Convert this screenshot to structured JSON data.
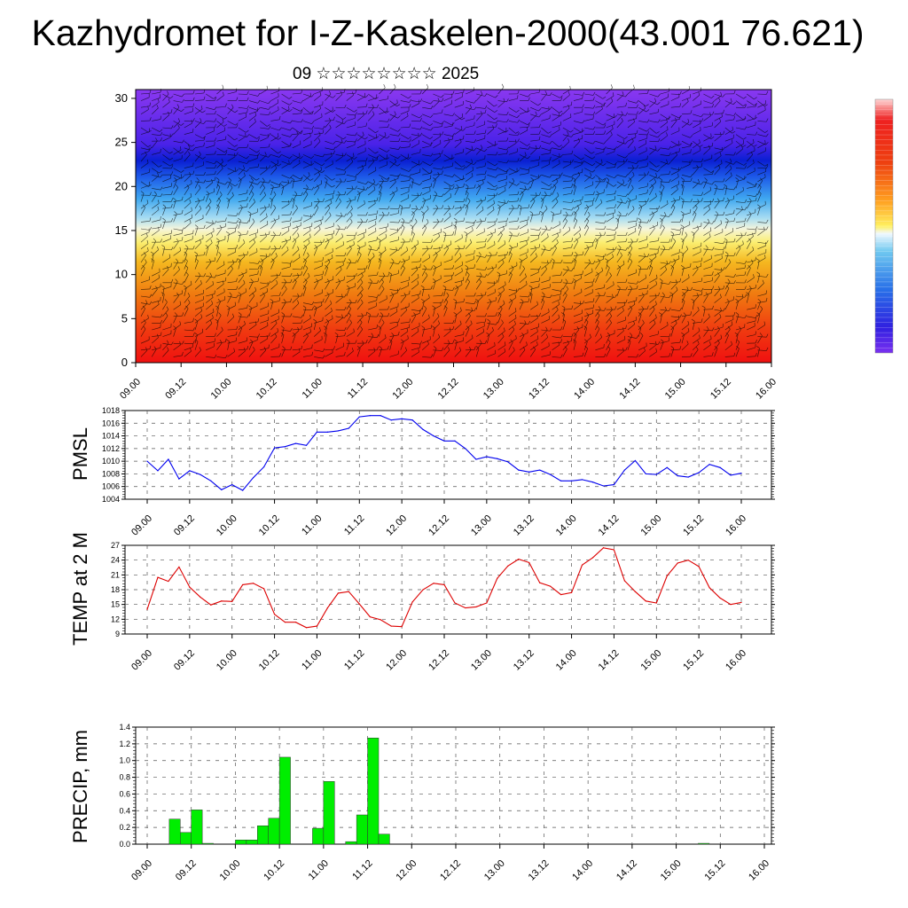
{
  "title": "Kazhydromet for I-Z-Kaskelen-2000(43.001 76.621)",
  "subtitle": "09 ☆☆☆☆☆☆☆☆ 2025",
  "x_tick_labels": [
    "09.00",
    "09.12",
    "10.00",
    "10.12",
    "11.00",
    "11.12",
    "12.00",
    "12.12",
    "13.00",
    "13.12",
    "14.00",
    "14.12",
    "15.00",
    "15.12",
    "16.00"
  ],
  "colors": {
    "pmsl_line": "#0000ee",
    "temp_line": "#dd0000",
    "precip_bar": "#00ee00"
  },
  "chart_data": [
    {
      "type": "heatmap",
      "title": "",
      "xlabel": "",
      "ylabel": "",
      "ylim": [
        0,
        31
      ],
      "y_ticks": [
        "0",
        "5",
        "10",
        "15",
        "20",
        "25",
        "30"
      ],
      "x_categories": [
        "09.00",
        "09.12",
        "10.00",
        "10.12",
        "11.00",
        "11.12",
        "12.00",
        "12.12",
        "13.00",
        "13.12",
        "14.00",
        "14.12",
        "15.00",
        "15.12",
        "16.00"
      ],
      "colormap": "warm-bottom-to-cool-top with wind barbs overlay",
      "legend": "colorbar right, unlabeled"
    },
    {
      "type": "line",
      "ylabel": "PMSL",
      "ylim": [
        1004,
        1018
      ],
      "y_ticks": [
        "1004",
        "1006",
        "1008",
        "1010",
        "1012",
        "1014",
        "1016",
        "1018"
      ],
      "grid": true,
      "series": [
        {
          "values": [
            1010.0,
            1008.5,
            1010.3,
            1007.2,
            1008.5,
            1007.9,
            1006.9,
            1005.5,
            1006.3,
            1005.4,
            1007.4,
            1009.1,
            1012.1,
            1012.3,
            1012.8,
            1012.5,
            1014.6,
            1014.6,
            1014.8,
            1015.2,
            1017.0,
            1017.2,
            1017.2,
            1016.5,
            1016.7,
            1016.5,
            1015.0,
            1014.0,
            1013.2,
            1013.2,
            1012.0,
            1010.3,
            1010.7,
            1010.4,
            1009.9,
            1008.6,
            1008.3,
            1008.6,
            1007.9,
            1006.9,
            1006.9,
            1007.1,
            1006.7,
            1006.1,
            1006.3,
            1008.6,
            1010.1,
            1008.0,
            1007.9,
            1009.0,
            1007.7,
            1007.5,
            1008.2,
            1009.5,
            1009.0,
            1007.8,
            1008.1
          ]
        }
      ]
    },
    {
      "type": "line",
      "ylabel": "TEMP at 2 M",
      "ylim": [
        9,
        27
      ],
      "y_ticks": [
        "9",
        "12",
        "15",
        "18",
        "21",
        "24",
        "27"
      ],
      "grid": true,
      "series": [
        {
          "values": [
            14.0,
            20.5,
            19.7,
            22.6,
            18.5,
            16.5,
            14.9,
            15.7,
            15.6,
            19.0,
            19.3,
            18.2,
            13.0,
            11.4,
            11.4,
            10.3,
            10.6,
            14.3,
            17.3,
            17.6,
            15.1,
            12.5,
            11.9,
            10.6,
            10.5,
            15.5,
            18.0,
            19.3,
            19.0,
            15.3,
            14.3,
            14.5,
            15.3,
            20.3,
            22.8,
            24.2,
            23.5,
            19.4,
            18.7,
            17.0,
            17.4,
            23.0,
            24.5,
            26.5,
            26.1,
            19.8,
            17.6,
            15.7,
            15.3,
            20.8,
            23.4,
            24.0,
            22.7,
            18.4,
            16.3,
            15.0,
            15.4
          ]
        }
      ]
    },
    {
      "type": "bar",
      "ylabel": "PRECIP, mm",
      "ylim": [
        0,
        1.4
      ],
      "y_ticks": [
        "0.0",
        "0.2",
        "0.4",
        "0.6",
        "0.8",
        "1.0",
        "1.2",
        "1.4"
      ],
      "grid": true,
      "values": [
        0.0,
        0.0,
        0.3,
        0.14,
        0.41,
        0.01,
        0.0,
        0.0,
        0.05,
        0.05,
        0.22,
        0.31,
        1.04,
        0.0,
        0.0,
        0.19,
        0.75,
        0.0,
        0.03,
        0.35,
        1.27,
        0.12,
        0.0,
        0,
        0,
        0,
        0,
        0,
        0,
        0,
        0,
        0,
        0,
        0,
        0,
        0,
        0,
        0,
        0,
        0,
        0,
        0,
        0,
        0,
        0,
        0,
        0,
        0,
        0,
        0,
        0.01,
        0,
        0,
        0,
        0,
        0
      ]
    }
  ]
}
